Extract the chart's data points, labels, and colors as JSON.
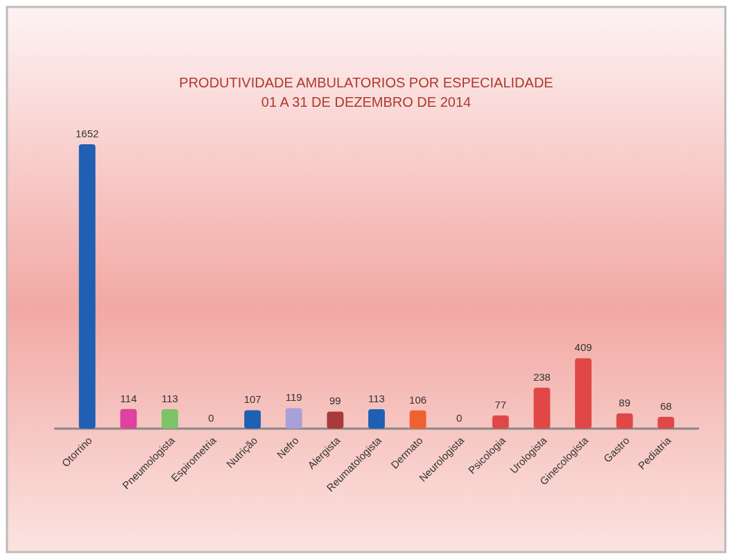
{
  "chart_data": {
    "type": "bar",
    "title": "PRODUTIVIDADE AMBULATORIOS POR ESPECIALIDADE",
    "subtitle": "01 A 31 DE DEZEMBRO DE 2014",
    "categories": [
      "Otorrino",
      null,
      "Pneumologista",
      "Espirometria",
      "Nutrição",
      "Nefro",
      "Alergista",
      "Reumatologista",
      "Dermato",
      "Neurologista",
      "Psicologia",
      "Urologista",
      "Ginecologista",
      "Gastro",
      "Pediatria"
    ],
    "values": [
      1652,
      114,
      113,
      0,
      107,
      119,
      99,
      113,
      106,
      0,
      77,
      238,
      409,
      89,
      68
    ],
    "colors": [
      "#1f5fb4",
      "#e040a0",
      "#7cc36a",
      "#555555",
      "#1f5fb4",
      "#a8a0d8",
      "#a83a3a",
      "#1f5fb4",
      "#f06030",
      "#888888",
      "#e04848",
      "#e04848",
      "#e04848",
      "#e04848",
      "#e04848"
    ],
    "data_labels": true
  }
}
